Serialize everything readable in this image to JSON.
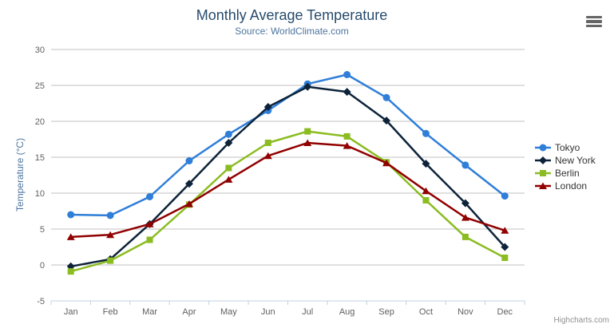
{
  "chart": {
    "credit_label": "Highcharts.com",
    "menu_icon": "hamburger"
  },
  "chart_data": {
    "type": "line",
    "title": "Monthly Average Temperature",
    "subtitle": "Source: WorldClimate.com",
    "xlabel": "",
    "ylabel": "Temperature (°C)",
    "categories": [
      "Jan",
      "Feb",
      "Mar",
      "Apr",
      "May",
      "Jun",
      "Jul",
      "Aug",
      "Sep",
      "Oct",
      "Nov",
      "Dec"
    ],
    "ylim": [
      -5,
      30
    ],
    "ytick_step": 5,
    "grid": true,
    "legend_position": "right",
    "grid_color": "#C0C0C0",
    "axis_line_color": "#C0D0E0",
    "tick_label_color": "#606060",
    "series": [
      {
        "name": "Tokyo",
        "color": "#2f7ed8",
        "marker": "circle",
        "values": [
          7.0,
          6.9,
          9.5,
          14.5,
          18.2,
          21.5,
          25.2,
          26.5,
          23.3,
          18.3,
          13.9,
          9.6
        ]
      },
      {
        "name": "New York",
        "color": "#0d233a",
        "marker": "diamond",
        "values": [
          -0.2,
          0.8,
          5.7,
          11.3,
          17.0,
          22.0,
          24.8,
          24.1,
          20.1,
          14.1,
          8.6,
          2.5
        ]
      },
      {
        "name": "Berlin",
        "color": "#8bbc21",
        "marker": "square",
        "values": [
          -0.9,
          0.6,
          3.5,
          8.4,
          13.5,
          17.0,
          18.6,
          17.9,
          14.3,
          9.0,
          3.9,
          1.0
        ]
      },
      {
        "name": "London",
        "color": "#910000",
        "marker": "triangle",
        "values": [
          3.9,
          4.2,
          5.7,
          8.5,
          11.9,
          15.2,
          17.0,
          16.6,
          14.2,
          10.3,
          6.6,
          4.8
        ]
      }
    ]
  }
}
